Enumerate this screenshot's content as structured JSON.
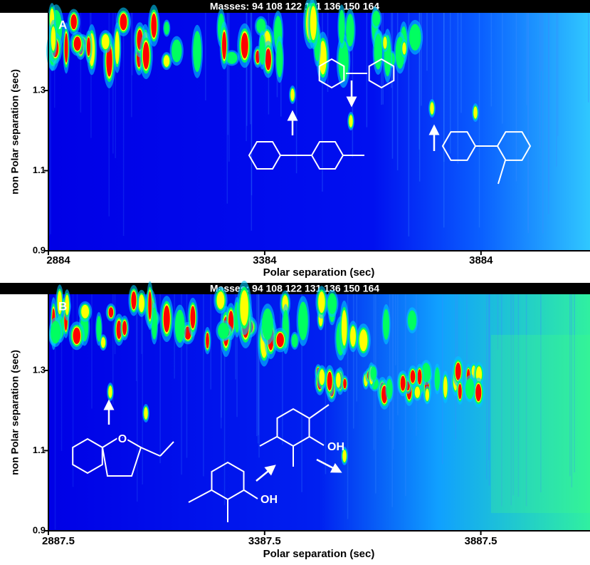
{
  "chart_data": [
    {
      "type": "heatmap",
      "title": "Masses:  94 108 122 131 136 150 164",
      "panel_label": "A",
      "xlabel": "Polar separation (sec)",
      "ylabel": "non Polar separation (sec)",
      "xlim": [
        2884,
        4136
      ],
      "xticks": [
        2884,
        3384,
        3884
      ],
      "ylim": [
        0.9,
        1.494
      ],
      "yticks": [
        0.9,
        1.1,
        1.3
      ],
      "colors": [
        "#0000e6",
        "#00c8ff",
        "#00ff60",
        "#ffff00",
        "#ff0000"
      ],
      "annotations": []
    },
    {
      "type": "heatmap",
      "title": "Masses:  94 108 122 131 136 150 164",
      "panel_label": "B",
      "xlabel": "Polar separation (sec)",
      "ylabel": "non Polar separation (sec)",
      "xlim": [
        2887.5,
        4140
      ],
      "xticks": [
        2887.5,
        3387.5,
        3887.5
      ],
      "ylim": [
        0.9,
        1.49
      ],
      "yticks": [
        0.9,
        1.1,
        1.3
      ],
      "colors": [
        "#0000e6",
        "#00c8ff",
        "#00ff60",
        "#ffff00",
        "#ff0000"
      ],
      "annotations": [
        "O",
        "OH",
        "OH"
      ]
    }
  ]
}
